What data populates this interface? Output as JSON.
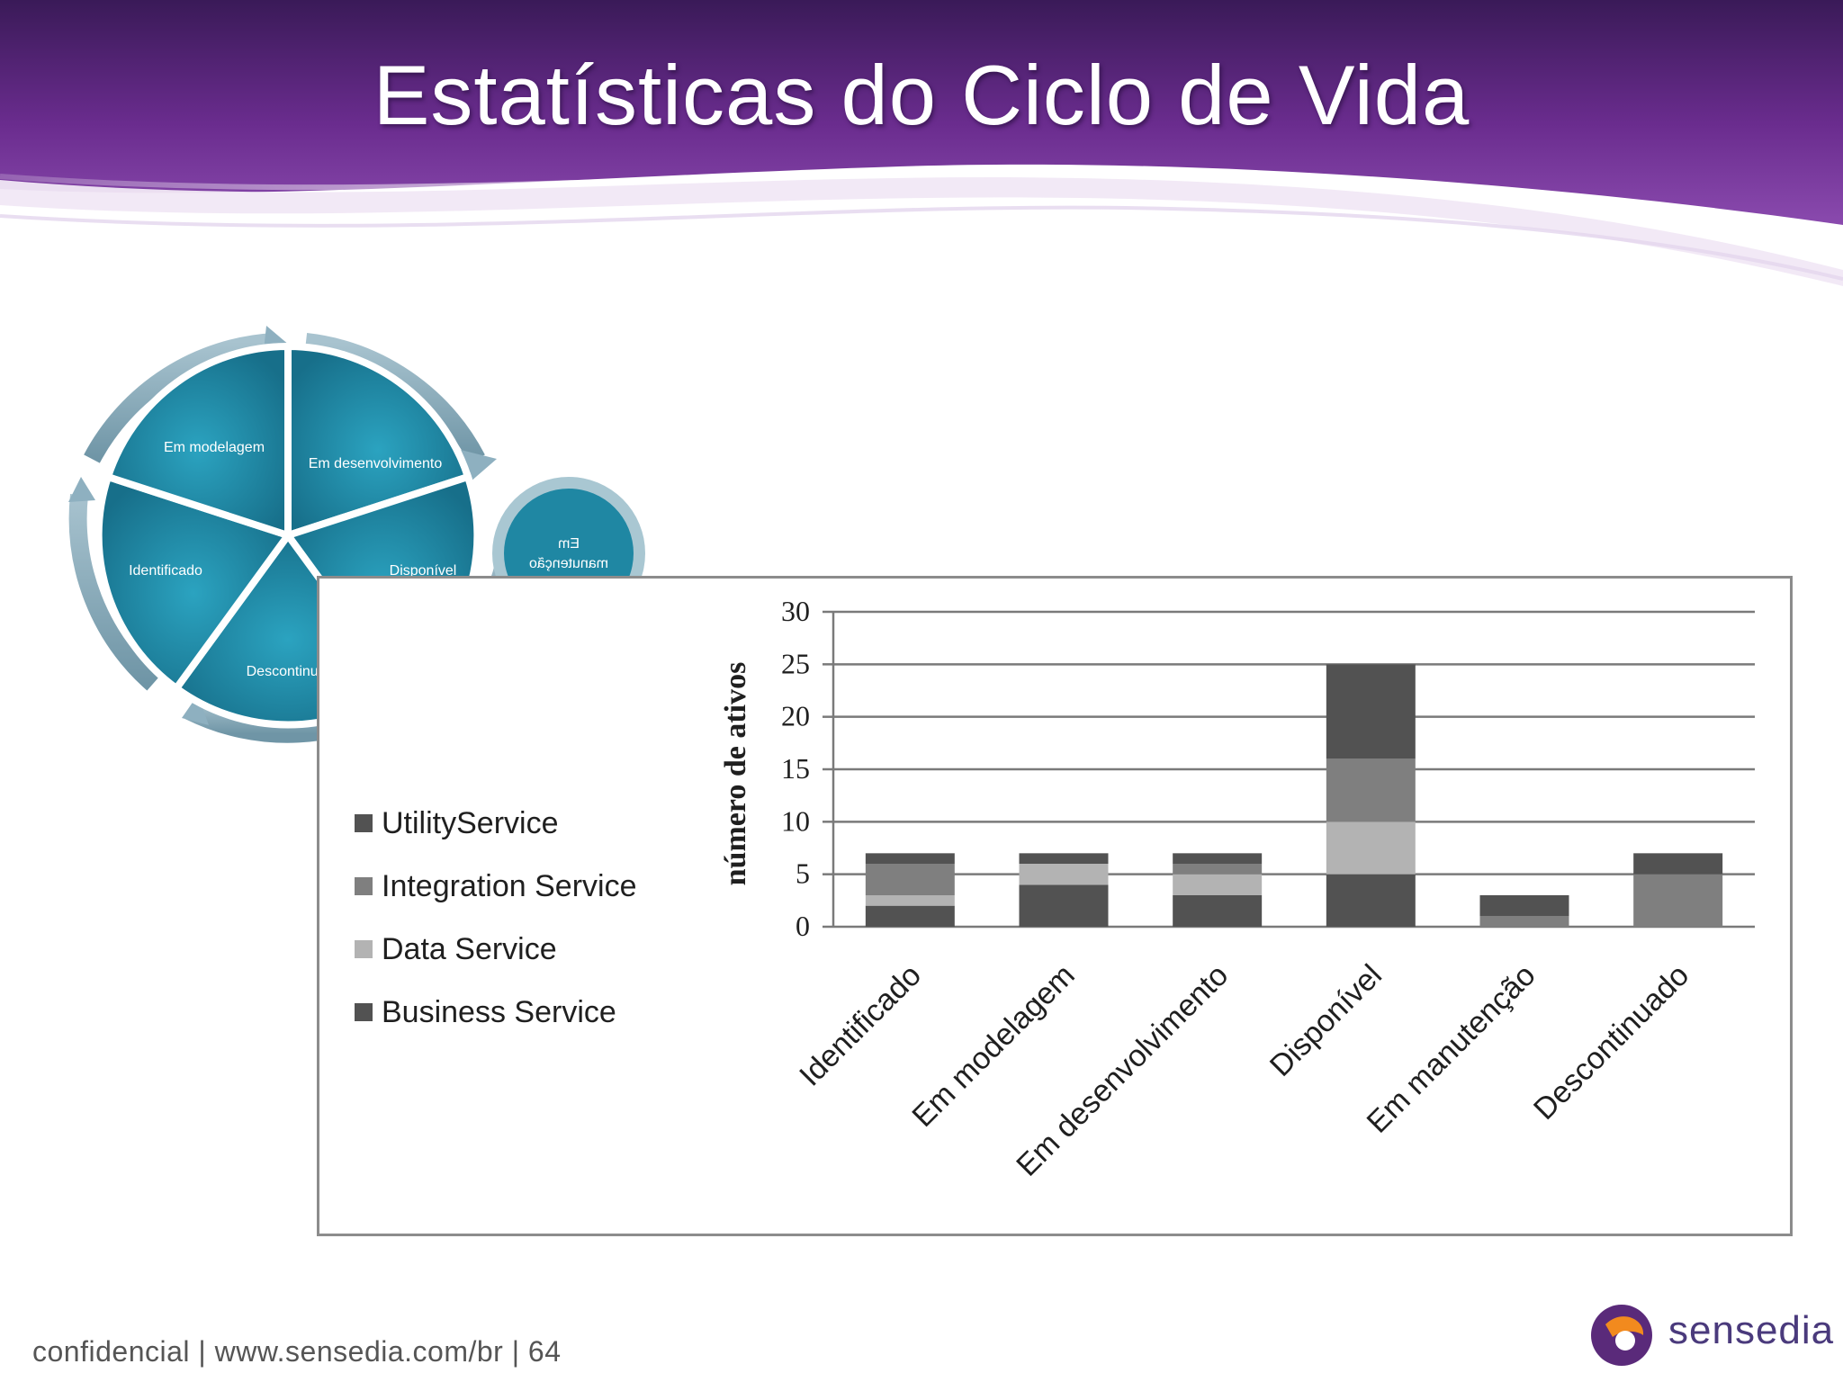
{
  "slide": {
    "title": "Estatísticas do Ciclo de Vida",
    "footer": "confidencial | www.sensedia.com/br | 64",
    "brand": "sensedia"
  },
  "cycle": {
    "stages": [
      "Em modelagem",
      "Em desenvolvimento",
      "Disponível",
      "Descontinuado",
      "Identificado"
    ],
    "side_stage_line1": "Em",
    "side_stage_line2": "manutenção",
    "color": "#1f8aa6"
  },
  "chart_data": {
    "type": "bar",
    "stacked": true,
    "categories": [
      "Identificado",
      "Em modelagem",
      "Em desenvolvimento",
      "Disponível",
      "Em manutenção",
      "Descontinuado"
    ],
    "series": [
      {
        "name": "Business Service",
        "color": "#525252",
        "values": [
          2,
          4,
          3,
          5,
          0,
          0
        ]
      },
      {
        "name": "Data Service",
        "color": "#b3b3b3",
        "values": [
          1,
          2,
          2,
          5,
          0,
          0
        ]
      },
      {
        "name": "Integration Service",
        "color": "#7f7f7f",
        "values": [
          3,
          0,
          1,
          6,
          1,
          5
        ]
      },
      {
        "name": "UtilityService",
        "color": "#525252",
        "values": [
          1,
          1,
          1,
          9,
          2,
          2
        ]
      }
    ],
    "legend_order": [
      "UtilityService",
      "Integration Service",
      "Data Service",
      "Business Service"
    ],
    "ylabel": "número de ativos",
    "xlabel": "",
    "ylim": [
      0,
      30
    ],
    "yticks": [
      "0",
      "5",
      "10",
      "15",
      "20",
      "25",
      "30"
    ],
    "grid": true,
    "legend_position": "left"
  }
}
